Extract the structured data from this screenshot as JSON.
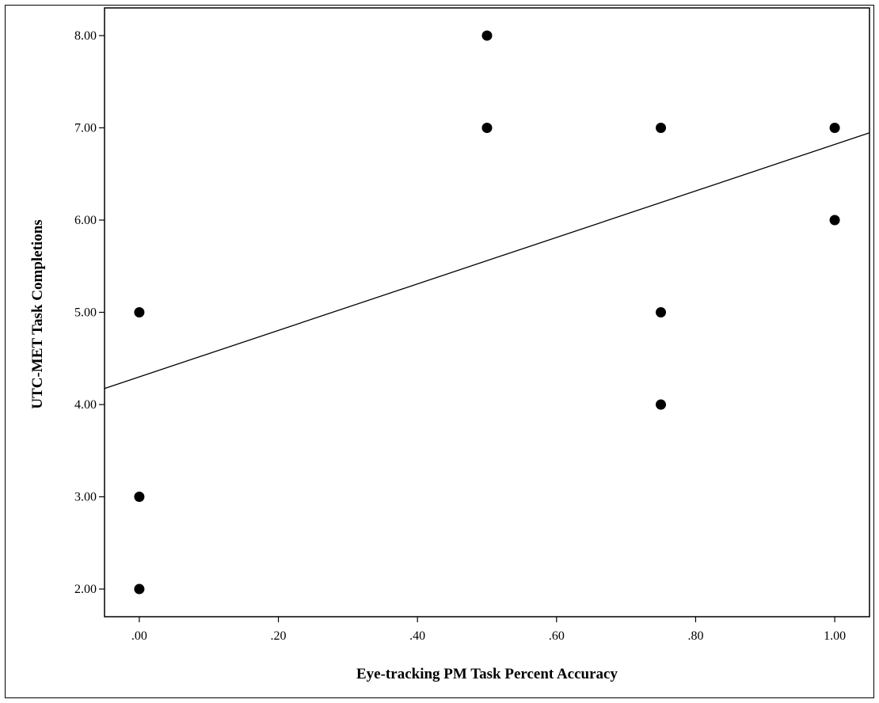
{
  "chart_data": {
    "type": "scatter",
    "xlabel": "Eye-tracking PM Task Percent Accuracy",
    "ylabel": "UTC-MET Task Completions",
    "xlim": [
      -0.05,
      1.05
    ],
    "ylim": [
      1.7,
      8.3
    ],
    "x_ticks": [
      0,
      0.2,
      0.4,
      0.6,
      0.8,
      1.0
    ],
    "x_tick_labels": [
      ".00",
      ".20",
      ".40",
      ".60",
      ".80",
      "1.00"
    ],
    "y_ticks": [
      2,
      3,
      4,
      5,
      6,
      7,
      8
    ],
    "y_tick_labels": [
      "2.00",
      "3.00",
      "4.00",
      "5.00",
      "6.00",
      "7.00",
      "8.00"
    ],
    "grid": false,
    "points": [
      {
        "x": 0.0,
        "y": 5
      },
      {
        "x": 0.0,
        "y": 3
      },
      {
        "x": 0.0,
        "y": 2
      },
      {
        "x": 0.5,
        "y": 8
      },
      {
        "x": 0.5,
        "y": 7
      },
      {
        "x": 0.75,
        "y": 7
      },
      {
        "x": 0.75,
        "y": 5
      },
      {
        "x": 0.75,
        "y": 4
      },
      {
        "x": 1.0,
        "y": 7
      },
      {
        "x": 1.0,
        "y": 6
      }
    ],
    "fit_line": {
      "intercept": 4.3,
      "slope": 2.52
    },
    "colors": {
      "points": "#000000",
      "line": "#000000",
      "axes": "#000000"
    }
  }
}
